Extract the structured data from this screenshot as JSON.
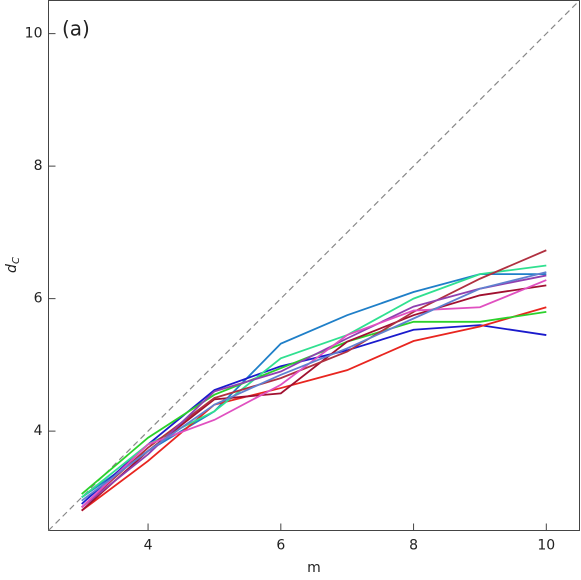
{
  "chart_data": {
    "type": "line",
    "annotation": "(a)",
    "xlabel": "m",
    "ylabel": {
      "main": "d",
      "subscript": "C"
    },
    "x": [
      3,
      4,
      5,
      6,
      7,
      8,
      9,
      10
    ],
    "xlim": [
      2.5,
      10.5
    ],
    "ylim": [
      2.5,
      10.5
    ],
    "xticks": [
      4,
      6,
      8,
      10
    ],
    "yticks": [
      4,
      6,
      8,
      10
    ],
    "diagonal": true,
    "grid": false,
    "series": [
      {
        "color": "#1f7fc8",
        "values": [
          3.0,
          3.7,
          4.3,
          5.32,
          5.75,
          6.1,
          6.37,
          6.37
        ]
      },
      {
        "color": "#1a1acc",
        "values": [
          2.9,
          3.8,
          4.62,
          4.98,
          5.22,
          5.53,
          5.6,
          5.45
        ]
      },
      {
        "color": "#e8251f",
        "values": [
          2.8,
          3.55,
          4.4,
          4.65,
          4.92,
          5.36,
          5.58,
          5.87
        ]
      },
      {
        "color": "#2bd12b",
        "values": [
          3.05,
          3.9,
          4.55,
          4.95,
          5.35,
          5.65,
          5.65,
          5.8
        ]
      },
      {
        "color": "#30e090",
        "values": [
          3.0,
          3.8,
          4.3,
          5.1,
          5.45,
          6.0,
          6.37,
          6.5
        ]
      },
      {
        "color": "#a01030",
        "values": [
          2.8,
          3.7,
          4.48,
          4.57,
          5.35,
          5.75,
          6.05,
          6.2
        ]
      },
      {
        "color": "#b03040",
        "values": [
          2.85,
          3.75,
          4.5,
          4.8,
          5.2,
          5.8,
          6.3,
          6.73
        ]
      },
      {
        "color": "#9040b0",
        "values": [
          2.85,
          3.65,
          4.6,
          4.9,
          5.4,
          5.88,
          6.15,
          6.35
        ]
      },
      {
        "color": "#e050c0",
        "values": [
          2.85,
          3.8,
          4.17,
          4.7,
          5.45,
          5.82,
          5.87,
          6.28
        ]
      },
      {
        "color": "#6080d0",
        "values": [
          2.95,
          3.7,
          4.4,
          4.85,
          5.25,
          5.7,
          6.15,
          6.4
        ]
      }
    ]
  }
}
